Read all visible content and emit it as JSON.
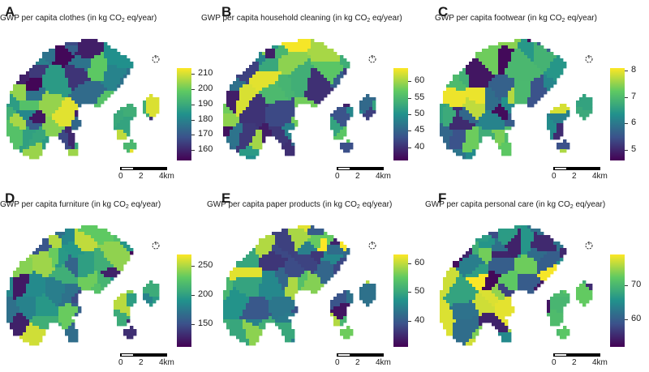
{
  "panels": [
    {
      "id": "A",
      "title_prefix": "GWP per capita clothes (in kg CO",
      "title_sub": "2",
      "title_suffix": " eq/year)",
      "ticks": [
        "210",
        "200",
        "190",
        "180",
        "170",
        "160"
      ],
      "range": [
        153,
        214
      ],
      "tick_values": [
        210,
        200,
        190,
        180,
        170,
        160
      ]
    },
    {
      "id": "B",
      "title_prefix": "GWP per capita household cleaning (in kg CO",
      "title_sub": "2",
      "title_suffix": " eq/year)",
      "ticks": [
        "60",
        "55",
        "50",
        "45",
        "40"
      ],
      "range": [
        36,
        64
      ],
      "tick_values": [
        60,
        55,
        50,
        45,
        40
      ]
    },
    {
      "id": "C",
      "title_prefix": "GWP per capita footwear (in kg CO",
      "title_sub": "2",
      "title_suffix": " eq/year)",
      "ticks": [
        "8",
        "7",
        "6",
        "5"
      ],
      "range": [
        4.6,
        8.1
      ],
      "tick_values": [
        8,
        7,
        6,
        5
      ]
    },
    {
      "id": "D",
      "title_prefix": "GWP per capita furniture (in kg CO",
      "title_sub": "2",
      "title_suffix": " eq/year)",
      "ticks": [
        "250",
        "200",
        "150"
      ],
      "range": [
        110,
        270
      ],
      "tick_values": [
        250,
        200,
        150
      ]
    },
    {
      "id": "E",
      "title_prefix": "GWP per capita paper products (in kg CO",
      "title_sub": "2",
      "title_suffix": " eq/year)",
      "ticks": [
        "60",
        "50",
        "40"
      ],
      "range": [
        31,
        63
      ],
      "tick_values": [
        60,
        50,
        40
      ]
    },
    {
      "id": "F",
      "title_prefix": "GWP per capita personal care (in kg CO",
      "title_sub": "2",
      "title_suffix": " eq/year)",
      "ticks": [
        "70",
        "60"
      ],
      "range": [
        52,
        79
      ],
      "tick_values": [
        70,
        60
      ]
    }
  ],
  "scalebar": {
    "zero": "0",
    "two": "2",
    "four": "4km"
  },
  "colors": {
    "viridis": [
      "#440154",
      "#3b528b",
      "#21918c",
      "#5ec962",
      "#fde725"
    ]
  }
}
